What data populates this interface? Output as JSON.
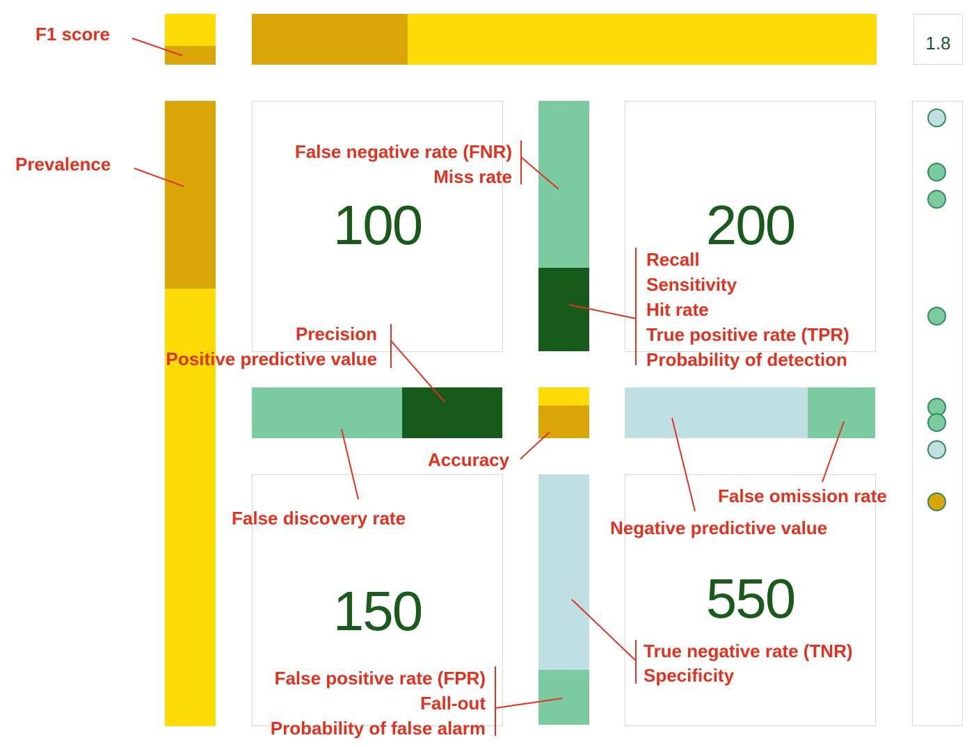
{
  "colors": {
    "yellow": "#fddc06",
    "dark_yellow": "#daa506",
    "light_green": "#7ccba0",
    "dark_green": "#175b1a",
    "light_blue": "#bfdfe2",
    "label_red": "#e0321e",
    "count_green": "#1a5a1c"
  },
  "counts": {
    "top_left": "100",
    "top_right": "200",
    "bottom_left": "150",
    "bottom_right": "550"
  },
  "score": "1.8",
  "fractions": {
    "f1_score": 0.38,
    "prevalence": 0.3,
    "recall": 0.33,
    "precision": 0.4,
    "accuracy": 0.65,
    "npv": 0.73,
    "specificity": 0.79
  },
  "labels": {
    "f1_score": "F1 score",
    "prevalence": "Prevalence",
    "fnr": "False negative rate (FNR)",
    "miss_rate": "Miss rate",
    "recall": "Recall",
    "sensitivity": "Sensitivity",
    "hit_rate": "Hit rate",
    "tpr": "True positive rate (TPR)",
    "prob_detection": "Probability of detection",
    "precision": "Precision",
    "ppv": "Positive predictive value",
    "accuracy": "Accuracy",
    "fdr": "False discovery rate",
    "npv": "Negative predictive value",
    "for": "False omission rate",
    "tnr": "True negative rate (TNR)",
    "specificity": "Specificity",
    "fpr": "False positive rate (FPR)",
    "fall_out": "Fall-out",
    "prob_false_alarm": "Probability of false alarm"
  },
  "score_circles": [
    "light-blue",
    "light-green",
    "light-green",
    "light-green",
    "light-green",
    "light-green",
    "light-blue",
    "dark-yellow"
  ]
}
